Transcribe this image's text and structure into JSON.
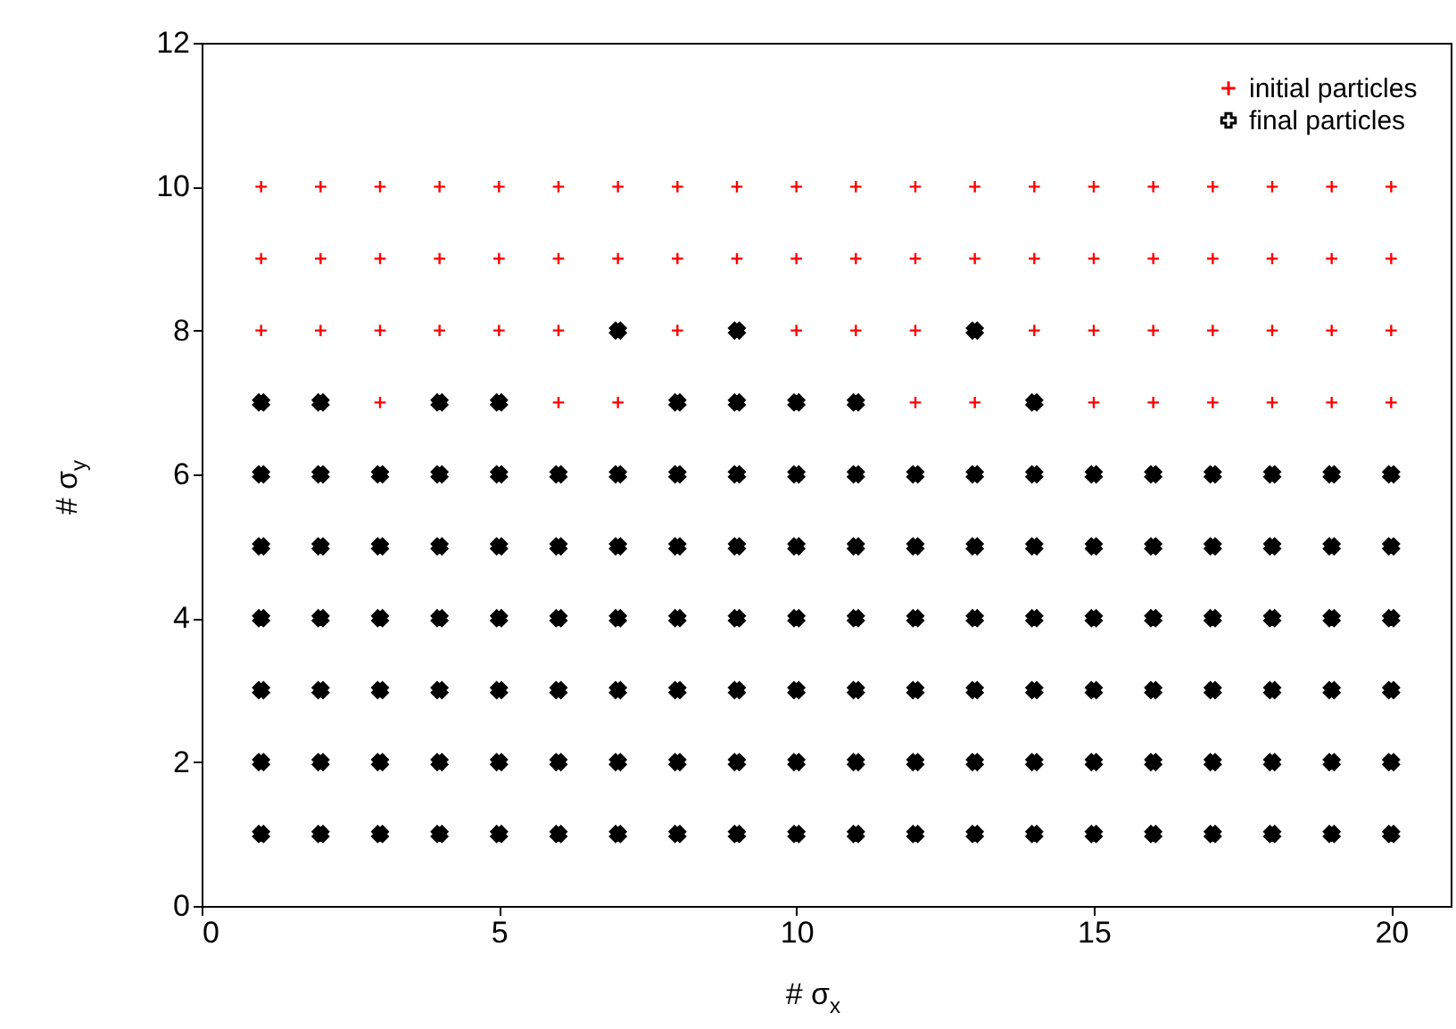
{
  "chart_data": {
    "type": "scatter",
    "xlabel": "# σ$_{x}$",
    "ylabel": "# σ$_{y}$",
    "xlim": [
      0,
      21
    ],
    "ylim": [
      0,
      12
    ],
    "xticks": [
      0,
      5,
      10,
      15,
      20
    ],
    "yticks": [
      0,
      2,
      4,
      6,
      8,
      10,
      12
    ],
    "grid": false,
    "legend": "top right",
    "marker": "cross",
    "series": [
      {
        "name": "initial particles",
        "color": "#ff0000",
        "x": [
          1,
          2,
          3,
          4,
          5,
          6,
          7,
          8,
          9,
          10,
          11,
          12,
          13,
          14,
          15,
          16,
          17,
          18,
          19,
          20,
          1,
          2,
          3,
          4,
          5,
          6,
          7,
          8,
          9,
          10,
          11,
          12,
          13,
          14,
          15,
          16,
          17,
          18,
          19,
          20,
          1,
          2,
          3,
          4,
          5,
          6,
          8,
          10,
          11,
          12,
          14,
          15,
          16,
          17,
          18,
          19,
          20,
          3,
          6,
          7,
          12,
          13,
          15,
          16,
          17,
          18,
          19,
          20
        ],
        "values": [
          10,
          10,
          10,
          10,
          10,
          10,
          10,
          10,
          10,
          10,
          10,
          10,
          10,
          10,
          10,
          10,
          10,
          10,
          10,
          10,
          9,
          9,
          9,
          9,
          9,
          9,
          9,
          9,
          9,
          9,
          9,
          9,
          9,
          9,
          9,
          9,
          9,
          9,
          9,
          9,
          8,
          8,
          8,
          8,
          8,
          8,
          8,
          8,
          8,
          8,
          8,
          8,
          8,
          8,
          8,
          8,
          8,
          7,
          7,
          7,
          7,
          7,
          7,
          7,
          7,
          7,
          7,
          7
        ]
      },
      {
        "name": "final particles",
        "color": "#000000",
        "x": [
          7,
          9,
          13,
          1,
          2,
          4,
          5,
          8,
          9,
          10,
          11,
          14,
          1,
          2,
          3,
          4,
          5,
          6,
          7,
          8,
          9,
          10,
          11,
          12,
          13,
          14,
          15,
          16,
          17,
          18,
          19,
          20,
          1,
          2,
          3,
          4,
          5,
          6,
          7,
          8,
          9,
          10,
          11,
          12,
          13,
          14,
          15,
          16,
          17,
          18,
          19,
          20,
          1,
          2,
          3,
          4,
          5,
          6,
          7,
          8,
          9,
          10,
          11,
          12,
          13,
          14,
          15,
          16,
          17,
          18,
          19,
          20,
          1,
          2,
          3,
          4,
          5,
          6,
          7,
          8,
          9,
          10,
          11,
          12,
          13,
          14,
          15,
          16,
          17,
          18,
          19,
          20,
          1,
          2,
          3,
          4,
          5,
          6,
          7,
          8,
          9,
          10,
          11,
          12,
          13,
          14,
          15,
          16,
          17,
          18,
          19,
          20,
          1,
          2,
          3,
          4,
          5,
          6,
          7,
          8,
          9,
          10,
          11,
          12,
          13,
          14,
          15,
          16,
          17,
          18,
          19,
          20
        ],
        "values": [
          8,
          8,
          8,
          7,
          7,
          7,
          7,
          7,
          7,
          7,
          7,
          7,
          6,
          6,
          6,
          6,
          6,
          6,
          6,
          6,
          6,
          6,
          6,
          6,
          6,
          6,
          6,
          6,
          6,
          6,
          6,
          6,
          5,
          5,
          5,
          5,
          5,
          5,
          5,
          5,
          5,
          5,
          5,
          5,
          5,
          5,
          5,
          5,
          5,
          5,
          5,
          5,
          4,
          4,
          4,
          4,
          4,
          4,
          4,
          4,
          4,
          4,
          4,
          4,
          4,
          4,
          4,
          4,
          4,
          4,
          4,
          4,
          3,
          3,
          3,
          3,
          3,
          3,
          3,
          3,
          3,
          3,
          3,
          3,
          3,
          3,
          3,
          3,
          3,
          3,
          3,
          3,
          2,
          2,
          2,
          2,
          2,
          2,
          2,
          2,
          2,
          2,
          2,
          2,
          2,
          2,
          2,
          2,
          2,
          2,
          2,
          2,
          1,
          1,
          1,
          1,
          1,
          1,
          1,
          1,
          1,
          1,
          1,
          1,
          1,
          1,
          1,
          1,
          1,
          1,
          1,
          1
        ]
      }
    ]
  }
}
